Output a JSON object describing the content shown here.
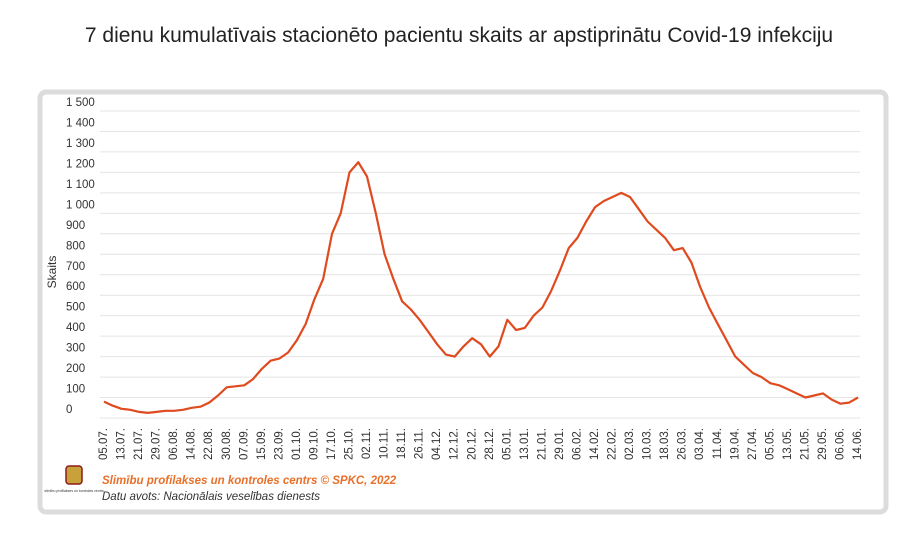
{
  "chart_data": {
    "type": "line",
    "title": "7 dienu kumulatīvais stacionēto pacientu skaits ar apstiprinātu Covid-19 infekciju",
    "y_label": "Skaits",
    "source": "Slimību profilakses un kontroles centrs © SPKC, 2022",
    "note": "Datu avots: Nacionālais veselības dienests",
    "logo_text": "slimību profilakses un kontroles centrs",
    "categories": [
      "05.07.",
      null,
      "13.07.",
      null,
      "21.07.",
      null,
      "29.07.",
      null,
      "06.08.",
      null,
      "14.08.",
      null,
      "22.08.",
      null,
      "30.08.",
      null,
      "07.09.",
      null,
      "15.09.",
      null,
      "23.09.",
      null,
      "01.10.",
      null,
      "09.10.",
      null,
      "17.10.",
      null,
      "25.10.",
      null,
      "02.11.",
      null,
      "10.11.",
      null,
      "18.11.",
      null,
      "26.11.",
      null,
      "04.12.",
      null,
      "12.12.",
      null,
      "20.12.",
      null,
      "28.12.",
      null,
      "05.01.",
      null,
      "13.01.",
      null,
      "21.01.",
      null,
      "29.01.",
      null,
      "06.02.",
      null,
      "14.02.",
      null,
      "22.02.",
      null,
      "02.03.",
      null,
      "10.03.",
      null,
      "18.03.",
      null,
      "26.03.",
      null,
      "03.04.",
      null,
      "11.04.",
      null,
      "19.04.",
      null,
      "27.04.",
      null,
      "05.05.",
      null,
      "13.05.",
      null,
      "21.05.",
      null,
      "29.05.",
      null,
      "06.06.",
      null,
      "14.06."
    ],
    "series": [
      {
        "name": "Skaits",
        "color": "#e04a1f",
        "values": [
          80,
          60,
          45,
          40,
          30,
          25,
          30,
          35,
          35,
          40,
          50,
          55,
          75,
          110,
          150,
          155,
          160,
          190,
          240,
          280,
          290,
          320,
          380,
          460,
          580,
          680,
          900,
          1000,
          1200,
          1250,
          1180,
          1000,
          800,
          680,
          570,
          530,
          480,
          420,
          360,
          310,
          300,
          350,
          390,
          360,
          300,
          350,
          480,
          430,
          440,
          500,
          540,
          620,
          720,
          830,
          880,
          960,
          1030,
          1060,
          1080,
          1100,
          1080,
          1020,
          960,
          920,
          880,
          820,
          830,
          760,
          640,
          540,
          460,
          380,
          300,
          260,
          220,
          200,
          170,
          160,
          140,
          120,
          100,
          110,
          120,
          90,
          70,
          75,
          100
        ]
      }
    ],
    "ylim": [
      0,
      1500
    ],
    "yticks": [
      0,
      100,
      200,
      300,
      400,
      500,
      600,
      700,
      800,
      900,
      {
        "value": 1000,
        "label": "1 000"
      },
      {
        "value": 1100,
        "label": "1 100"
      },
      {
        "value": 1200,
        "label": "1 200"
      },
      {
        "value": 1300,
        "label": "1 300"
      },
      {
        "value": 1400,
        "label": "1 400"
      },
      {
        "value": 1500,
        "label": "1 500"
      }
    ],
    "grid": true
  }
}
